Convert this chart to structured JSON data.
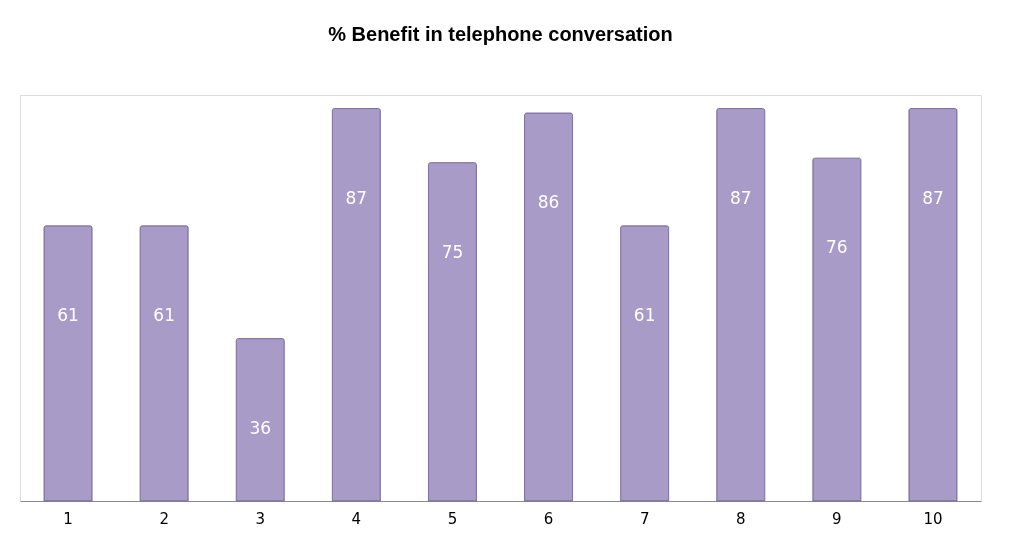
{
  "chart_data": {
    "type": "bar",
    "title": "% Benefit in telephone conversation",
    "categories": [
      "1",
      "2",
      "3",
      "4",
      "5",
      "6",
      "7",
      "8",
      "9",
      "10"
    ],
    "values": [
      61,
      61,
      36,
      87,
      75,
      86,
      61,
      87,
      76,
      87
    ],
    "color": "#a99bc8",
    "data_labels": true
  }
}
